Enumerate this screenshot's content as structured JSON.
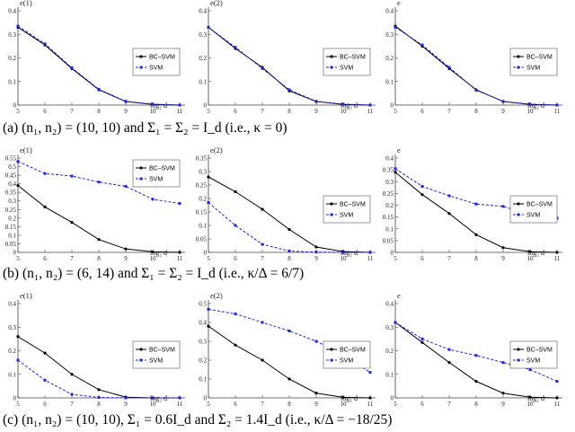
{
  "captions": [
    "(a) (n₁, n₂) = (10, 10) and Σ₁ = Σ₂ = I_d (i.e., κ = 0)",
    "(b) (n₁, n₂) = (6, 14) and Σ₁ = Σ₂ = I_d (i.e., κ/Δ = 6/7)",
    "(c) (n₁, n₂) = (10, 10), Σ₁ = 0.6I_d and Σ₂ = 1.4I_d (i.e., κ/Δ = −18/25)"
  ],
  "colors": {
    "bc_svm": "#000000",
    "svm": "#2222dd"
  },
  "chart_data": [
    {
      "type": "line",
      "row": 0,
      "col": 0,
      "ylabel": "e(1)",
      "xlabel": "log₂ d",
      "x": [
        5,
        6,
        7,
        8,
        9,
        10,
        11
      ],
      "ylim": [
        0,
        0.4
      ],
      "yticks": [
        "0",
        "0.1",
        "0.2",
        "0.3",
        "0.4"
      ],
      "legend": "right",
      "series": [
        {
          "name": "BC–SVM",
          "values": [
            0.33,
            0.255,
            0.155,
            0.065,
            0.015,
            0.003,
            0.0
          ]
        },
        {
          "name": "SVM",
          "values": [
            0.335,
            0.26,
            0.158,
            0.067,
            0.016,
            0.004,
            0.0
          ]
        }
      ]
    },
    {
      "type": "line",
      "row": 0,
      "col": 1,
      "ylabel": "e(2)",
      "xlabel": "log₂ d",
      "x": [
        5,
        6,
        7,
        8,
        9,
        10,
        11
      ],
      "ylim": [
        0,
        0.4
      ],
      "yticks": [
        "0",
        "0.1",
        "0.2",
        "0.3",
        "0.4"
      ],
      "legend": "right",
      "series": [
        {
          "name": "BC–SVM",
          "values": [
            0.33,
            0.24,
            0.16,
            0.06,
            0.015,
            0.003,
            0.0
          ]
        },
        {
          "name": "SVM",
          "values": [
            0.33,
            0.245,
            0.155,
            0.065,
            0.016,
            0.004,
            0.0
          ]
        }
      ]
    },
    {
      "type": "line",
      "row": 0,
      "col": 2,
      "ylabel": "e",
      "xlabel": "log₂ d",
      "x": [
        5,
        6,
        7,
        8,
        9,
        10,
        11
      ],
      "ylim": [
        0,
        0.4
      ],
      "yticks": [
        "0",
        "0.1",
        "0.2",
        "0.3",
        "0.4"
      ],
      "legend": "right",
      "series": [
        {
          "name": "BC–SVM",
          "values": [
            0.335,
            0.25,
            0.155,
            0.065,
            0.015,
            0.003,
            0.0
          ]
        },
        {
          "name": "SVM",
          "values": [
            0.33,
            0.255,
            0.16,
            0.063,
            0.016,
            0.004,
            0.0
          ]
        }
      ]
    },
    {
      "type": "line",
      "row": 1,
      "col": 0,
      "ylabel": "e(1)",
      "xlabel": "log₂ d",
      "x": [
        5,
        6,
        7,
        8,
        9,
        10,
        11
      ],
      "ylim": [
        0,
        0.55
      ],
      "yticks": [
        "0",
        "0.05",
        "0.1",
        "0.15",
        "0.2",
        "0.25",
        "0.3",
        "0.35",
        "0.4",
        "0.45",
        "0.5",
        "0.55"
      ],
      "legend": "top",
      "series": [
        {
          "name": "BC–SVM",
          "values": [
            0.39,
            0.265,
            0.175,
            0.075,
            0.02,
            0.003,
            0.0
          ]
        },
        {
          "name": "SVM",
          "values": [
            0.53,
            0.46,
            0.445,
            0.41,
            0.385,
            0.31,
            0.285
          ]
        }
      ]
    },
    {
      "type": "line",
      "row": 1,
      "col": 1,
      "ylabel": "e(2)",
      "xlabel": "log₂ d",
      "x": [
        5,
        6,
        7,
        8,
        9,
        10,
        11
      ],
      "ylim": [
        0,
        0.35
      ],
      "yticks": [
        "0",
        "0.05",
        "0.1",
        "0.15",
        "0.2",
        "0.25",
        "0.3",
        "0.35"
      ],
      "legend": "right",
      "series": [
        {
          "name": "BC–SVM",
          "values": [
            0.28,
            0.225,
            0.16,
            0.085,
            0.02,
            0.003,
            0.0
          ]
        },
        {
          "name": "SVM",
          "values": [
            0.185,
            0.1,
            0.03,
            0.005,
            0.001,
            0.0,
            0.0
          ]
        }
      ]
    },
    {
      "type": "line",
      "row": 1,
      "col": 2,
      "ylabel": "e",
      "xlabel": "log₂ d",
      "x": [
        5,
        6,
        7,
        8,
        9,
        10,
        11
      ],
      "ylim": [
        0,
        0.4
      ],
      "yticks": [
        "0",
        "0.05",
        "0.1",
        "0.15",
        "0.2",
        "0.25",
        "0.3",
        "0.35",
        "0.4"
      ],
      "legend": "right",
      "series": [
        {
          "name": "BC–SVM",
          "values": [
            0.34,
            0.245,
            0.165,
            0.075,
            0.02,
            0.003,
            0.0
          ]
        },
        {
          "name": "SVM",
          "values": [
            0.355,
            0.28,
            0.24,
            0.205,
            0.195,
            0.16,
            0.145
          ]
        }
      ]
    },
    {
      "type": "line",
      "row": 2,
      "col": 0,
      "ylabel": "e(1)",
      "xlabel": "log₂ d",
      "x": [
        5,
        6,
        7,
        8,
        9,
        10,
        11
      ],
      "ylim": [
        0,
        0.4
      ],
      "yticks": [
        "0",
        "0.1",
        "0.2",
        "0.3",
        "0.4"
      ],
      "legend": "right",
      "series": [
        {
          "name": "BC–SVM",
          "values": [
            0.26,
            0.19,
            0.1,
            0.035,
            0.003,
            0.0,
            0.0
          ]
        },
        {
          "name": "SVM",
          "values": [
            0.16,
            0.075,
            0.015,
            0.002,
            0.0,
            0.0,
            0.0
          ]
        }
      ]
    },
    {
      "type": "line",
      "row": 2,
      "col": 1,
      "ylabel": "e(2)",
      "xlabel": "log₂ d",
      "x": [
        5,
        6,
        7,
        8,
        9,
        10,
        11
      ],
      "ylim": [
        0,
        0.5
      ],
      "yticks": [
        "0",
        "0.1",
        "0.2",
        "0.3",
        "0.4",
        "0.5"
      ],
      "legend": "right",
      "series": [
        {
          "name": "BC–SVM",
          "values": [
            0.38,
            0.28,
            0.2,
            0.1,
            0.025,
            0.003,
            0.0
          ]
        },
        {
          "name": "SVM",
          "values": [
            0.47,
            0.445,
            0.4,
            0.355,
            0.3,
            0.23,
            0.135
          ]
        }
      ]
    },
    {
      "type": "line",
      "row": 2,
      "col": 2,
      "ylabel": "e",
      "xlabel": "log₂ d",
      "x": [
        5,
        6,
        7,
        8,
        9,
        10,
        11
      ],
      "ylim": [
        0,
        0.4
      ],
      "yticks": [
        "0",
        "0.1",
        "0.2",
        "0.3",
        "0.4"
      ],
      "legend": "right",
      "series": [
        {
          "name": "BC–SVM",
          "values": [
            0.32,
            0.235,
            0.15,
            0.07,
            0.02,
            0.003,
            0.0
          ]
        },
        {
          "name": "SVM",
          "values": [
            0.32,
            0.25,
            0.205,
            0.18,
            0.15,
            0.12,
            0.07
          ]
        }
      ]
    }
  ]
}
